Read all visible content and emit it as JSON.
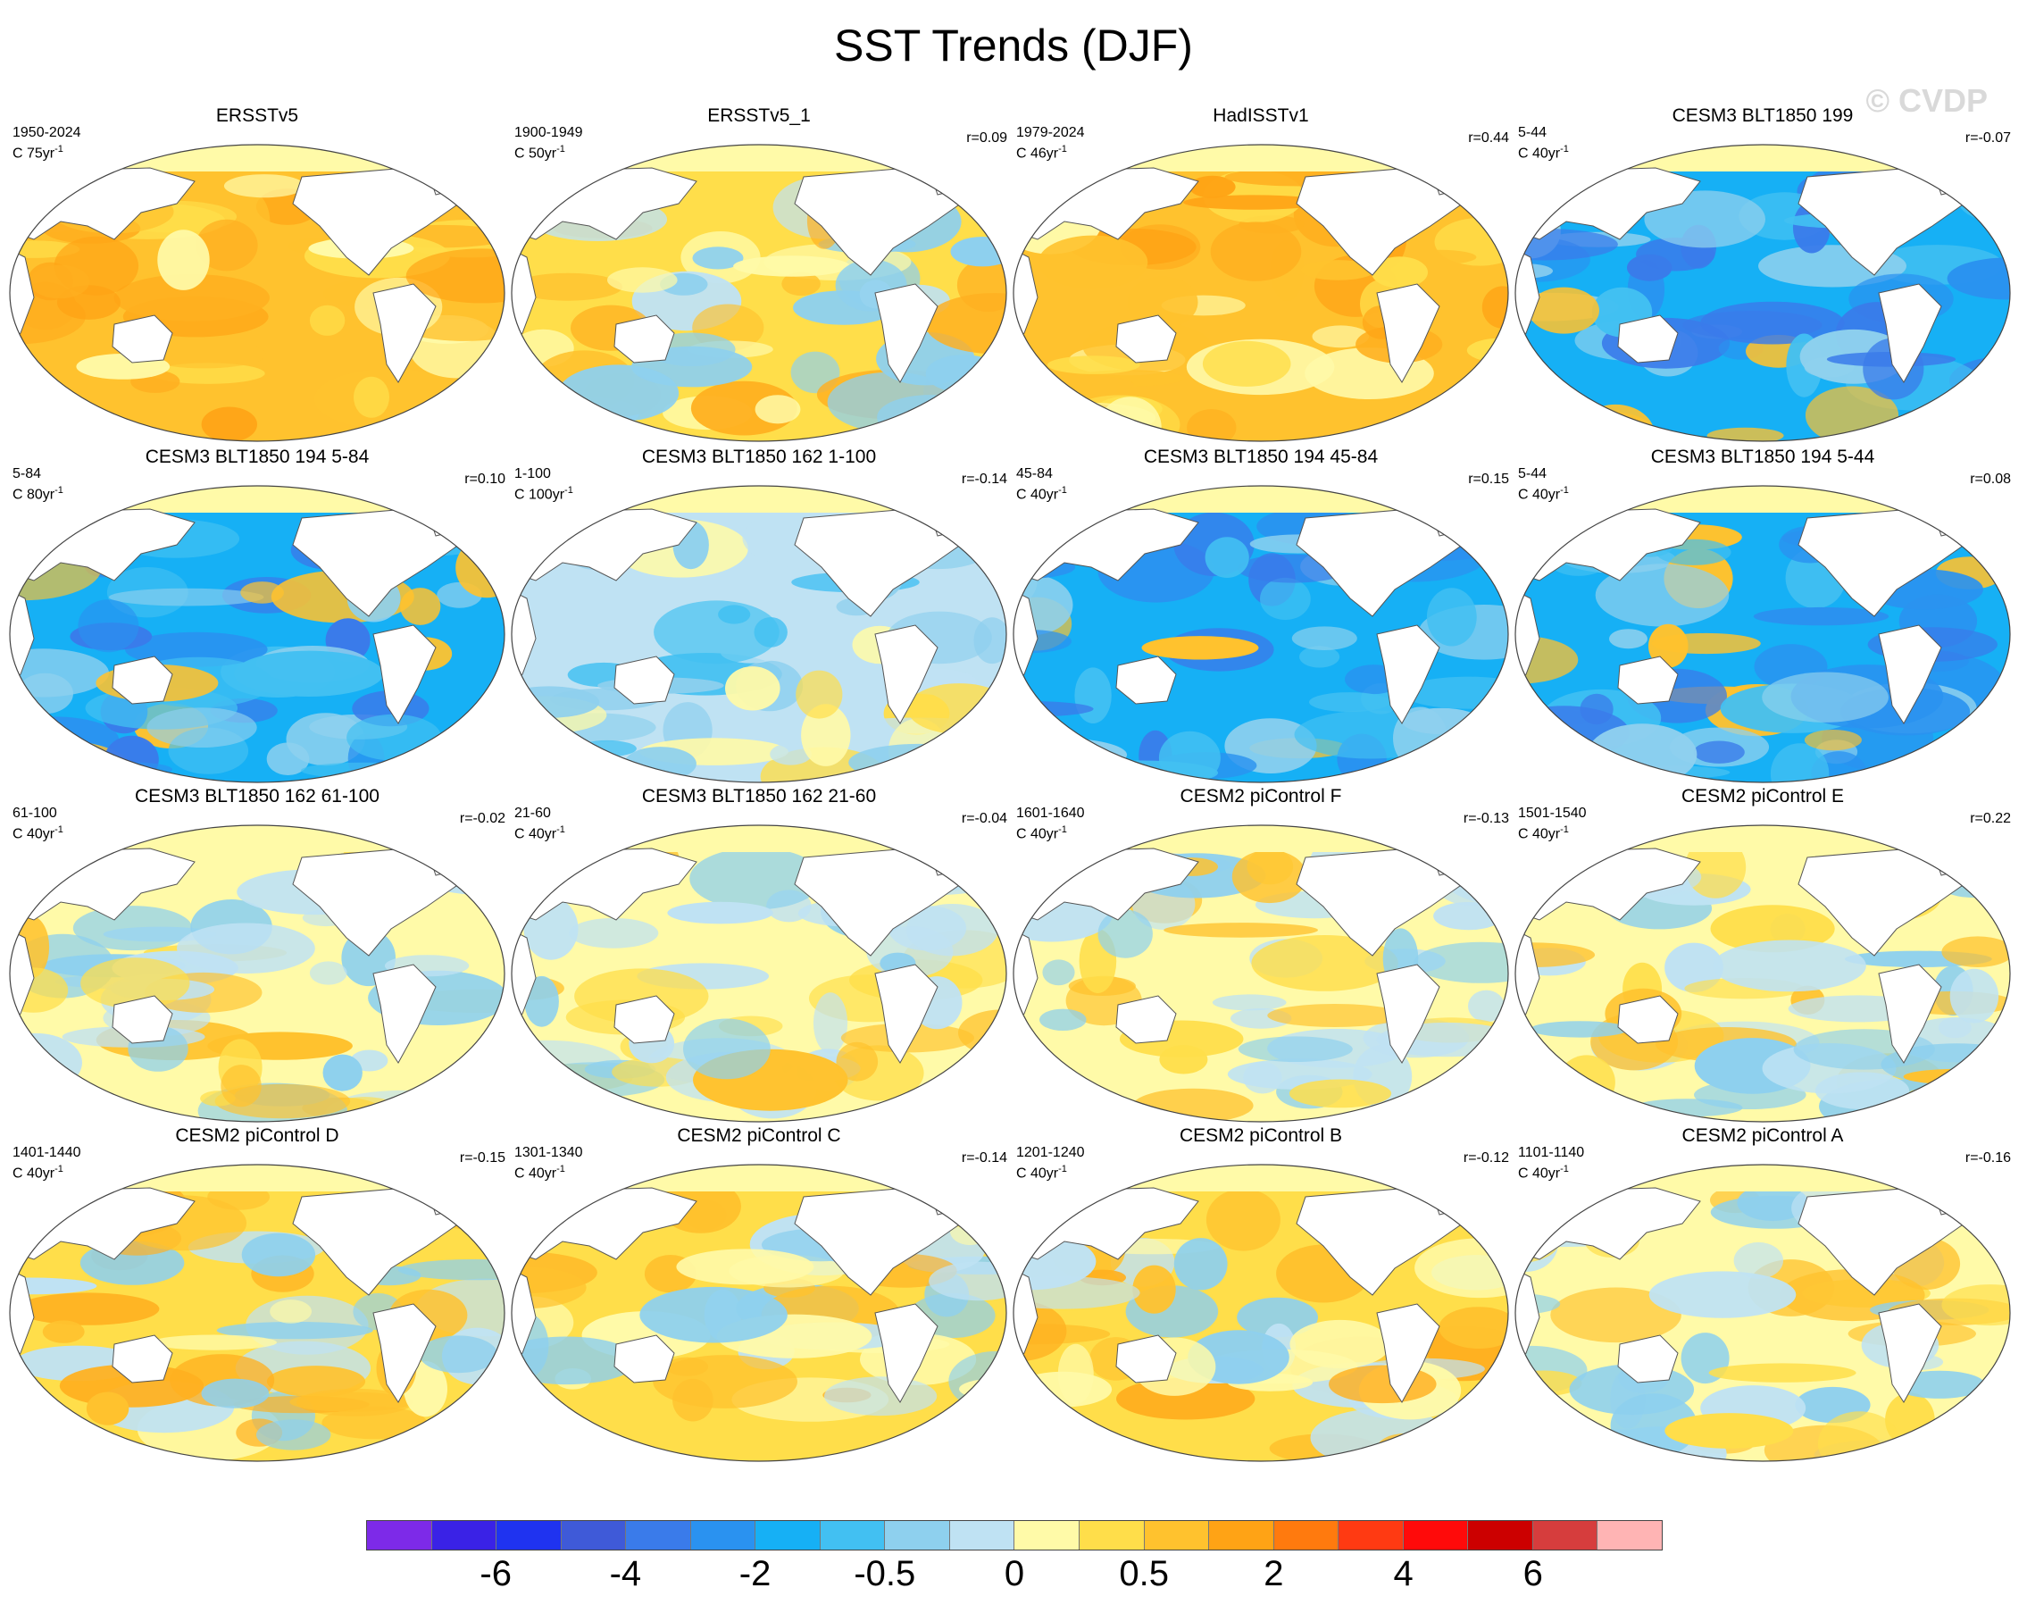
{
  "title": "SST Trends (DJF)",
  "watermark": "© CVDP",
  "panels": [
    {
      "title": "ERSSTv5",
      "period": "1950-2024",
      "scale": "C 75yr",
      "r": "",
      "palette": "warm"
    },
    {
      "title": "ERSSTv5_1",
      "period": "1900-1949",
      "scale": "C 50yr",
      "r": "r=0.09",
      "palette": "mixed-warm"
    },
    {
      "title": "HadISSTv1",
      "period": "1979-2024",
      "scale": "C 46yr",
      "r": "r=0.44",
      "palette": "warm"
    },
    {
      "title": "CESM3 BLT1850 199",
      "period": "5-44",
      "scale": "C 40yr",
      "r": "r=-0.07",
      "palette": "cold"
    },
    {
      "title": "CESM3 BLT1850 194 5-84",
      "period": "5-84",
      "scale": "C 80yr",
      "r": "r=0.10",
      "palette": "cold"
    },
    {
      "title": "CESM3 BLT1850 162 1-100",
      "period": "1-100",
      "scale": "C 100yr",
      "r": "r=-0.14",
      "palette": "mixed-cool"
    },
    {
      "title": "CESM3 BLT1850 194 45-84",
      "period": "45-84",
      "scale": "C 40yr",
      "r": "r=0.15",
      "palette": "cold"
    },
    {
      "title": "CESM3 BLT1850 194 5-44",
      "period": "5-44",
      "scale": "C 40yr",
      "r": "r=0.08",
      "palette": "cold"
    },
    {
      "title": "CESM3 BLT1850 162 61-100",
      "period": "61-100",
      "scale": "C 40yr",
      "r": "r=-0.02",
      "palette": "mixed"
    },
    {
      "title": "CESM3 BLT1850 162 21-60",
      "period": "21-60",
      "scale": "C 40yr",
      "r": "r=-0.04",
      "palette": "mixed"
    },
    {
      "title": "CESM2 piControl F",
      "period": "1601-1640",
      "scale": "C 40yr",
      "r": "r=-0.13",
      "palette": "mixed"
    },
    {
      "title": "CESM2 piControl E",
      "period": "1501-1540",
      "scale": "C 40yr",
      "r": "r=0.22",
      "palette": "mixed"
    },
    {
      "title": "CESM2 piControl D",
      "period": "1401-1440",
      "scale": "C 40yr",
      "r": "r=-0.15",
      "palette": "mixed-warm"
    },
    {
      "title": "CESM2 piControl C",
      "period": "1301-1340",
      "scale": "C 40yr",
      "r": "r=-0.14",
      "palette": "mixed-warm"
    },
    {
      "title": "CESM2 piControl B",
      "period": "1201-1240",
      "scale": "C 40yr",
      "r": "r=-0.12",
      "palette": "mixed-warm"
    },
    {
      "title": "CESM2 piControl A",
      "period": "1101-1140",
      "scale": "C 40yr",
      "r": "r=-0.16",
      "palette": "mixed"
    }
  ],
  "scale_suffix": "-1",
  "colorbar": {
    "colors": [
      "#7d2ae8",
      "#3a22e6",
      "#1f33f0",
      "#3f5ad8",
      "#3a7bea",
      "#2a92f0",
      "#16b0f5",
      "#42c0f2",
      "#8ed0ee",
      "#bfe2f3",
      "#fffaa8",
      "#ffde4a",
      "#ffc22e",
      "#ffa315",
      "#ff7a0e",
      "#ff3a12",
      "#ff0a0a",
      "#cc0000",
      "#d63d3d",
      "#ffb4b4"
    ],
    "labels": [
      "-6",
      "-4",
      "-2",
      "-0.5",
      "0",
      "0.5",
      "2",
      "4",
      "6"
    ]
  }
}
